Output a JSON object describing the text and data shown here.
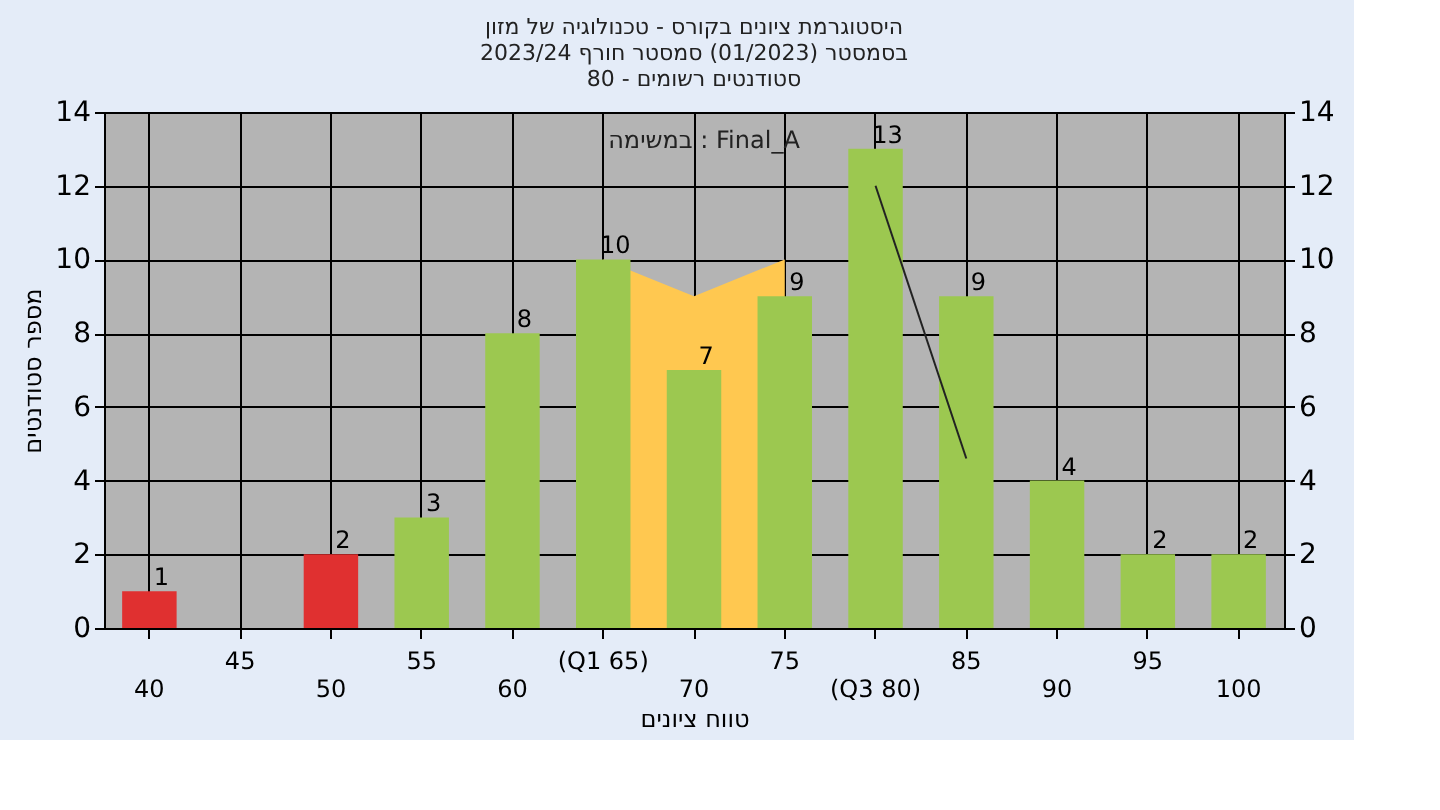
{
  "chart_data": {
    "type": "bar",
    "title": [
      "היסטוגרמת ציונים בקורס - טכנולוגיה של מזון",
      "בסמסטר  (01/2023)  סמסטר חורף 2023/24",
      "סטודנטים רשומים - 80"
    ],
    "xlabel": "טווח ציונים",
    "ylabel": "מספר סטודנטים",
    "annotations": [
      "במשימה : Final_A"
    ],
    "categories": [
      "40",
      "45",
      "50",
      "55",
      "60",
      "(Q1 65)",
      "70",
      "75",
      "(Q3 80)",
      "85",
      "90",
      "95",
      "100"
    ],
    "series": [
      {
        "type": "area",
        "color": "#ffc850",
        "x": [
          "(Q1 65)",
          "70",
          "75",
          "(Q3 80)"
        ],
        "values": [
          10,
          9,
          10,
          null
        ]
      },
      {
        "type": "bar",
        "values": [
          1,
          0,
          2,
          3,
          8,
          10,
          7,
          9,
          13,
          9,
          4,
          2,
          2
        ],
        "colors": [
          "#e03030",
          "#e03030",
          "#e03030",
          "#9cc850",
          "#9cc850",
          "#9cc850",
          "#9cc850",
          "#9cc850",
          "#9cc850",
          "#9cc850",
          "#9cc850",
          "#9cc850",
          "#9cc850"
        ],
        "value_labels": [
          "1",
          null,
          "2",
          "3",
          "8",
          "10",
          "7",
          "9",
          "13",
          "9",
          "4",
          "2",
          "2"
        ]
      },
      {
        "type": "line",
        "color": "#222222",
        "x": [
          "(Q3 80)",
          "85"
        ],
        "values": [
          12,
          4.6
        ]
      }
    ],
    "ylim": [
      0,
      14
    ],
    "yticks": [
      0,
      2,
      4,
      6,
      8,
      10,
      12,
      14
    ],
    "y2lim": [
      0,
      14
    ],
    "y2ticks": [
      0,
      2,
      4,
      6,
      8,
      10,
      12,
      14
    ],
    "grid": true,
    "legend": false
  }
}
